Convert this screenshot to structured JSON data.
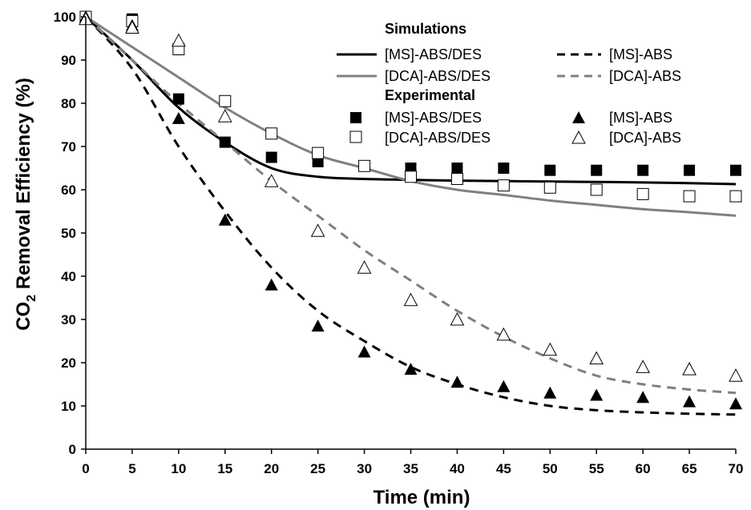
{
  "chart_data": {
    "type": "line",
    "xlabel": "Time (min)",
    "ylabel_main": "CO",
    "ylabel_sub": "2",
    "ylabel_rest": " Removal Efficiency (%)",
    "xlim": [
      0,
      70
    ],
    "ylim": [
      0,
      100
    ],
    "xticks": [
      "0",
      "5",
      "10",
      "15",
      "20",
      "25",
      "30",
      "35",
      "40",
      "45",
      "50",
      "55",
      "60",
      "65",
      "70"
    ],
    "yticks": [
      "0",
      "10",
      "20",
      "30",
      "40",
      "50",
      "60",
      "70",
      "80",
      "90",
      "100"
    ],
    "grid": false,
    "legend_position": "top-right",
    "legend": {
      "simulations_title": "Simulations",
      "experimental_title": "Experimental",
      "labels": {
        "ms_abs_des": "[MS]-ABS/DES",
        "ms_abs": "[MS]-ABS",
        "dca_abs_des": "[DCA]-ABS/DES",
        "dca_abs": "[DCA]-ABS"
      }
    },
    "simulations": [
      {
        "name": "[MS]-ABS/DES",
        "color": "#000000",
        "dash": "solid",
        "x": [
          0,
          5,
          10,
          15,
          20,
          25,
          30,
          35,
          40,
          50,
          60,
          70
        ],
        "y": [
          100,
          90,
          79,
          71,
          65,
          63,
          62.5,
          62.3,
          62.1,
          61.9,
          61.7,
          61.3
        ]
      },
      {
        "name": "[MS]-ABS",
        "color": "#000000",
        "dash": "dashed",
        "x": [
          0,
          5,
          10,
          15,
          20,
          25,
          30,
          35,
          40,
          45,
          50,
          55,
          60,
          65,
          70
        ],
        "y": [
          100,
          88,
          70,
          55,
          42,
          32,
          25,
          19,
          15,
          12,
          10,
          9,
          8.5,
          8.2,
          8
        ]
      },
      {
        "name": "[DCA]-ABS/DES",
        "color": "#808080",
        "dash": "solid",
        "x": [
          0,
          5,
          10,
          15,
          20,
          25,
          30,
          35,
          40,
          45,
          50,
          55,
          60,
          65,
          70
        ],
        "y": [
          100,
          93,
          86,
          79,
          73,
          68,
          65,
          62,
          60,
          58.8,
          57.5,
          56.5,
          55.5,
          54.8,
          54
        ]
      },
      {
        "name": "[DCA]-ABS",
        "color": "#808080",
        "dash": "dashed",
        "x": [
          0,
          5,
          10,
          15,
          20,
          25,
          30,
          35,
          40,
          45,
          50,
          55,
          60,
          65,
          70
        ],
        "y": [
          100,
          90,
          80,
          71,
          62,
          54,
          46,
          39,
          32,
          26,
          21,
          17,
          15,
          13.8,
          13
        ]
      }
    ],
    "experimental": [
      {
        "name": "[MS]-ABS/DES",
        "marker": "square-filled",
        "x": [
          0,
          5,
          10,
          15,
          20,
          25,
          30,
          35,
          40,
          45,
          50,
          55,
          60,
          65,
          70
        ],
        "y": [
          100,
          99.5,
          81,
          71,
          67.5,
          66.5,
          65.5,
          65,
          65,
          65,
          64.5,
          64.5,
          64.5,
          64.5,
          64.5
        ]
      },
      {
        "name": "[DCA]-ABS/DES",
        "marker": "square-open",
        "x": [
          0,
          5,
          10,
          15,
          20,
          25,
          30,
          35,
          40,
          45,
          50,
          55,
          60,
          65,
          70
        ],
        "y": [
          100,
          99,
          92.5,
          80.5,
          73,
          68.5,
          65.5,
          63,
          62.5,
          61,
          60.5,
          60,
          59,
          58.5,
          58.5
        ]
      },
      {
        "name": "[MS]-ABS",
        "marker": "triangle-filled",
        "x": [
          0,
          5,
          10,
          15,
          20,
          25,
          30,
          35,
          40,
          45,
          50,
          55,
          60,
          65,
          70
        ],
        "y": [
          100,
          98,
          76.5,
          53,
          38,
          28.5,
          22.5,
          18.5,
          15.5,
          14.5,
          13,
          12.5,
          12,
          11,
          10.5
        ]
      },
      {
        "name": "[DCA]-ABS",
        "marker": "triangle-open",
        "x": [
          0,
          5,
          10,
          15,
          20,
          25,
          30,
          35,
          40,
          45,
          50,
          55,
          60,
          65,
          70
        ],
        "y": [
          99.5,
          97.5,
          94.5,
          77,
          62,
          50.5,
          42,
          34.5,
          30,
          26.5,
          23,
          21,
          19,
          18.5,
          17
        ]
      }
    ]
  }
}
